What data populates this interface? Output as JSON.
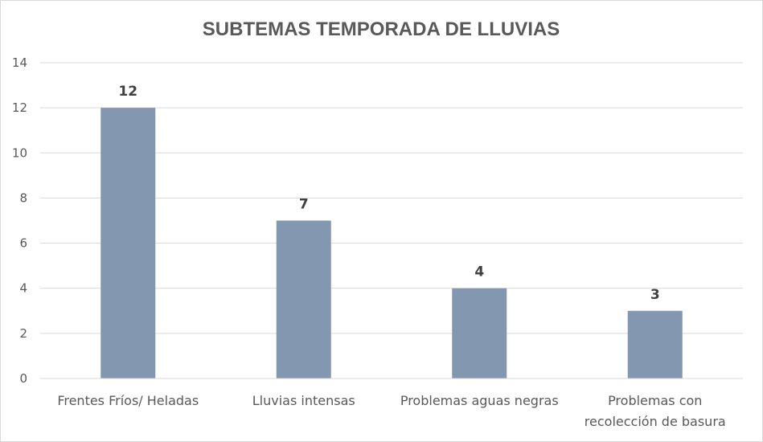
{
  "chart_data": {
    "type": "bar",
    "title": "SUBTEMAS TEMPORADA DE LLUVIAS",
    "categories": [
      [
        "Frentes Fríos/ Heladas"
      ],
      [
        "Lluvias intensas"
      ],
      [
        "Problemas aguas negras"
      ],
      [
        "Problemas con",
        "recolección de basura"
      ]
    ],
    "values": [
      12,
      7,
      4,
      3
    ],
    "data_labels": [
      "12",
      "7",
      "4",
      "3"
    ],
    "ylim": [
      0,
      14
    ],
    "yticks": [
      "0",
      "2",
      "4",
      "6",
      "8",
      "10",
      "12",
      "14"
    ],
    "grid": true,
    "legend": "none",
    "xlabel": "",
    "ylabel": "",
    "colors": {
      "bar": "#8497b0",
      "grid": "#d9d9d9",
      "text": "#595959",
      "label": "#404040"
    }
  }
}
